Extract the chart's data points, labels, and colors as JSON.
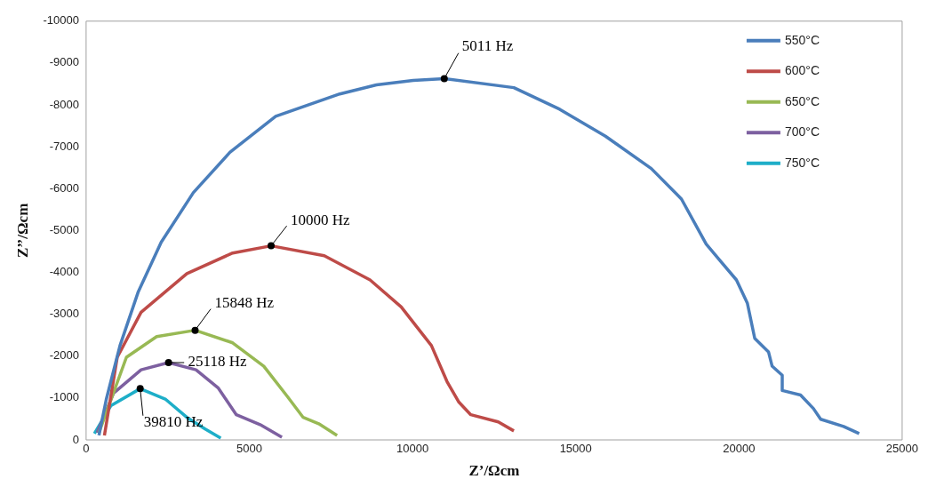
{
  "chart_data": {
    "type": "line",
    "xlabel": "Z’/Ωcm",
    "ylabel": "Z’’/Ωcm",
    "xlim": [
      0,
      25000
    ],
    "xticks": [
      0,
      5000,
      10000,
      15000,
      20000,
      25000
    ],
    "ylim": [
      0,
      -10000
    ],
    "yticks": [
      0,
      -1000,
      -2000,
      -3000,
      -4000,
      -5000,
      -6000,
      -7000,
      -8000,
      -9000,
      -10000
    ],
    "grid": false,
    "legend": "top right",
    "marker": "none",
    "line_style": "solid",
    "series": [
      {
        "name": "550°C",
        "color": "#4a7ebb",
        "x": [
          393,
          617,
          1038,
          1599,
          2301,
          3283,
          4405,
          5808,
          7773,
          8895,
          10018,
          10972,
          13104,
          14507,
          15910,
          17313,
          18239,
          18996,
          19361,
          19923,
          20259,
          20484,
          20905,
          21017,
          21326,
          21326,
          21887,
          22280,
          22504,
          23206,
          23683
        ],
        "values": [
          -107,
          -966,
          -2253,
          -3541,
          -4721,
          -5902,
          -6867,
          -7726,
          -8262,
          -8477,
          -8584,
          -8627,
          -8412,
          -7897,
          -7253,
          -6481,
          -5751,
          -4678,
          -4335,
          -3820,
          -3262,
          -2425,
          -2103,
          -1760,
          -1545,
          -1180,
          -1073,
          -751,
          -494,
          -322,
          -150
        ]
      },
      {
        "name": "600°C",
        "color": "#be4b48",
        "x": [
          561,
          954,
          1684,
          3087,
          4490,
          5668,
          7296,
          8699,
          9653,
          10579,
          11056,
          11421,
          11785,
          12627,
          13104
        ],
        "values": [
          -107,
          -1974,
          -3047,
          -3970,
          -4464,
          -4635,
          -4399,
          -3820,
          -3176,
          -2253,
          -1395,
          -901,
          -601,
          -429,
          -215
        ]
      },
      {
        "name": "650°C",
        "color": "#98b954",
        "x": [
          393,
          1235,
          2161,
          3339,
          4490,
          5444,
          6173,
          6650,
          7127,
          7688
        ],
        "values": [
          -172,
          -1974,
          -2468,
          -2618,
          -2318,
          -1760,
          -1030,
          -537,
          -386,
          -107
        ]
      },
      {
        "name": "700°C",
        "color": "#7d60a0",
        "x": [
          337,
          842,
          1684,
          2525,
          3367,
          4041,
          4602,
          5331,
          5998
        ],
        "values": [
          -172,
          -1116,
          -1674,
          -1846,
          -1674,
          -1245,
          -601,
          -365,
          -64
        ]
      },
      {
        "name": "750°C",
        "color": "#1eaec8",
        "x": [
          253,
          758,
          1656,
          2441,
          3087,
          3648,
          4125
        ],
        "values": [
          -150,
          -815,
          -1223,
          -966,
          -537,
          -258,
          -43
        ]
      }
    ],
    "annotations": [
      {
        "text": "5011 Hz",
        "x": 10972,
        "y": -8627
      },
      {
        "text": "10000 Hz",
        "x": 5668,
        "y": -4635
      },
      {
        "text": "15848 Hz",
        "x": 3339,
        "y": -2618
      },
      {
        "text": "25118 Hz",
        "x": 2525,
        "y": -1846
      },
      {
        "text": "39810 Hz",
        "x": 1656,
        "y": -1223
      }
    ]
  }
}
